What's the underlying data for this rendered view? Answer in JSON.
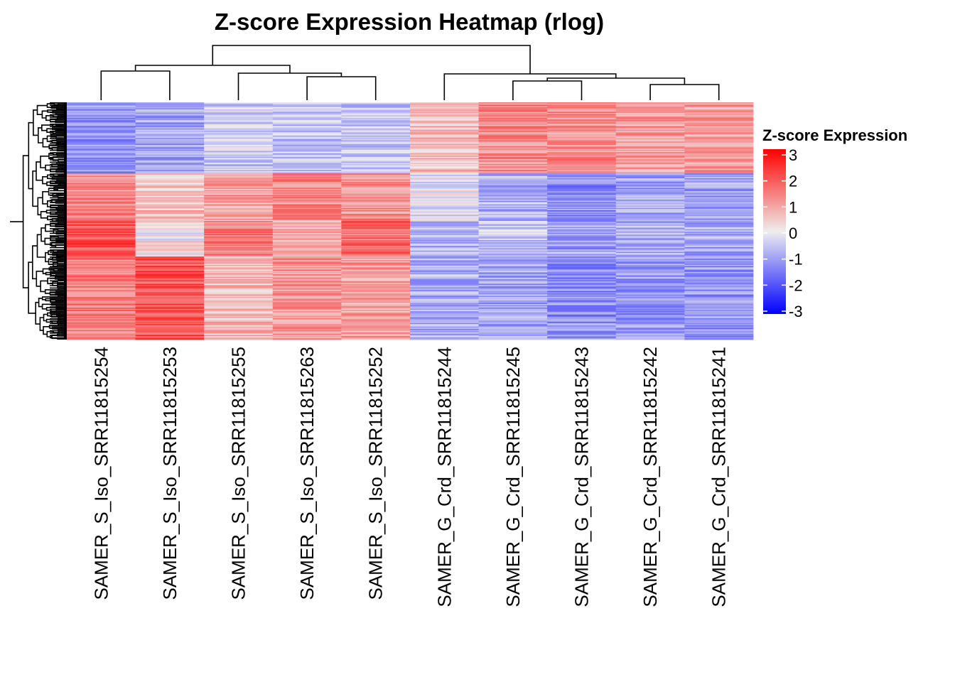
{
  "chart_data": {
    "type": "heatmap",
    "title": "Z-score Expression Heatmap (rlog)",
    "columns": [
      "SAMER_S_Iso_SRR11815254",
      "SAMER_S_Iso_SRR11815253",
      "SAMER_S_Iso_SRR11815255",
      "SAMER_S_Iso_SRR11815263",
      "SAMER_S_Iso_SRR11815252",
      "SAMER_G_Crd_SRR11815244",
      "SAMER_G_Crd_SRR11815245",
      "SAMER_G_Crd_SRR11815243",
      "SAMER_G_Crd_SRR11815242",
      "SAMER_G_Crd_SRR11815241"
    ],
    "legend": {
      "title": "Z-score Expression",
      "range": [
        -3,
        3
      ],
      "ticks": [
        3,
        2,
        1,
        0,
        -1,
        -2,
        -3
      ],
      "colors": {
        "low": "#0000ff",
        "mid": "#eeeeee",
        "high": "#ff0000"
      }
    },
    "n_rows": 200,
    "row_blocks": [
      {
        "rows": [
          0,
          60
        ],
        "mean_z": [
          -1.2,
          -1.0,
          -0.4,
          -0.6,
          -0.5,
          0.6,
          1.3,
          1.2,
          1.0,
          1.0
        ]
      },
      {
        "rows": [
          60,
          100
        ],
        "mean_z": [
          1.3,
          0.6,
          1.0,
          1.3,
          1.2,
          -0.2,
          -0.8,
          -1.2,
          -0.9,
          -0.9
        ]
      },
      {
        "rows": [
          100,
          130
        ],
        "mean_z": [
          2.0,
          0.1,
          1.5,
          1.0,
          1.6,
          -0.8,
          -0.6,
          -1.0,
          -0.8,
          -0.9
        ]
      },
      {
        "rows": [
          130,
          200
        ],
        "mean_z": [
          1.4,
          2.0,
          0.6,
          1.2,
          1.0,
          -0.8,
          -0.9,
          -1.2,
          -1.1,
          -1.1
        ]
      }
    ],
    "column_dendrogram": "((254,253),(255,(263,252))),(244,((245,243),(242,241)))",
    "row_dendrogram": "hierarchical clustering of 200 rows (rendered schematically)"
  }
}
